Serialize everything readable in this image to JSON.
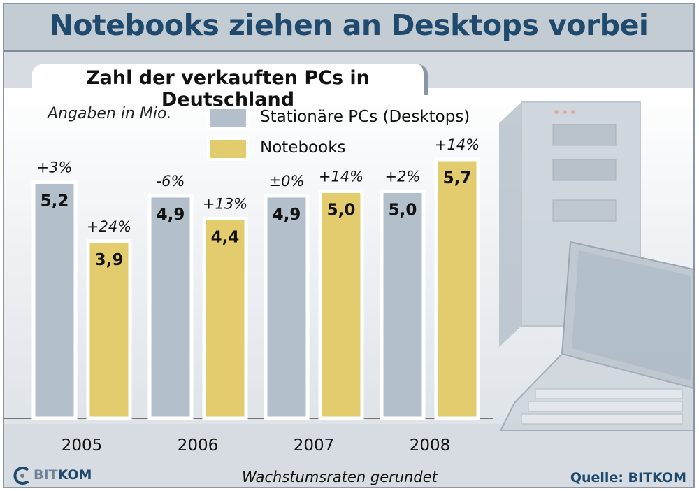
{
  "title": "Notebooks ziehen an Desktops vorbei",
  "subtitle": "Zahl der verkauften PCs in Deutschland",
  "unit_note": "Angaben in Mio.",
  "footnote": "Wachstumsraten gerundet",
  "source": "Quelle: BITKOM",
  "logo": {
    "part1": "BIT",
    "part2": "KOM"
  },
  "colors": {
    "desktops": "#b3c0cc",
    "notebooks": "#e2cc6e",
    "title": "#1f4a6e"
  },
  "chart_data": {
    "type": "bar",
    "categories": [
      "2005",
      "2006",
      "2007",
      "2008"
    ],
    "series": [
      {
        "name": "Stationäre PCs (Desktops)",
        "values": [
          5.2,
          4.9,
          4.9,
          5.0
        ],
        "value_labels": [
          "5,2",
          "4,9",
          "4,9",
          "5,0"
        ],
        "growth_labels": [
          "+3%",
          "-6%",
          "±0%",
          "+2%"
        ]
      },
      {
        "name": "Notebooks",
        "values": [
          3.9,
          4.4,
          5.0,
          5.7
        ],
        "value_labels": [
          "3,9",
          "4,4",
          "5,0",
          "5,7"
        ],
        "growth_labels": [
          "+24%",
          "+13%",
          "+14%",
          "+14%"
        ]
      }
    ],
    "ylim": [
      0,
      6
    ],
    "grid": false,
    "legend": "top-left"
  }
}
